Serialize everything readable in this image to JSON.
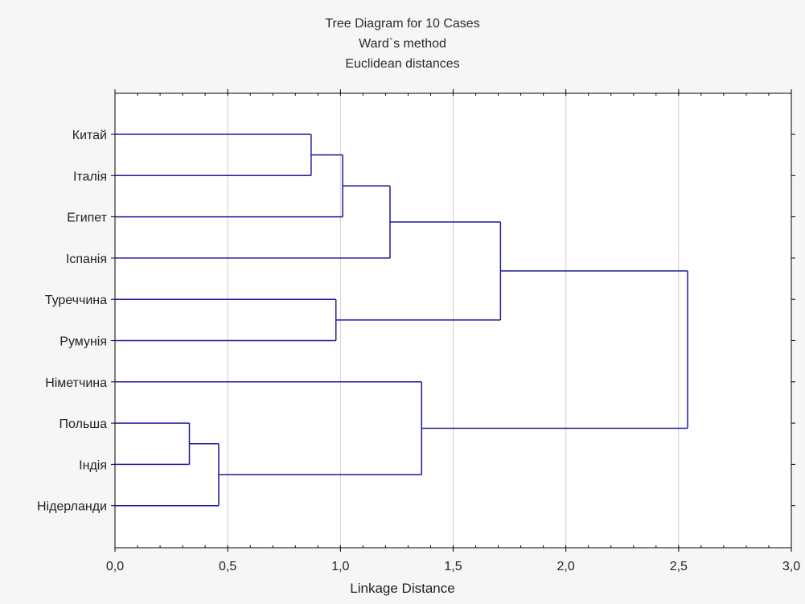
{
  "chart_data": {
    "type": "dendrogram",
    "title": [
      "Tree Diagram for 10 Cases",
      "Ward`s method",
      "Euclidean distances"
    ],
    "xlabel": "Linkage Distance",
    "ylabel": "",
    "xlim": [
      0,
      3.0
    ],
    "xticks": [
      "0,0",
      "0,5",
      "1,0",
      "1,5",
      "2,0",
      "2,5",
      "3,0"
    ],
    "grid": "vertical",
    "line_color": "#1a1aa0",
    "leaves": [
      "Китай",
      "Італія",
      "Египет",
      "Іспанія",
      "Туреччина",
      "Румунія",
      "Німетчина",
      "Польша",
      "Індія",
      "Нідерланди"
    ],
    "merges": [
      {
        "a": "Польша",
        "b": "Індія",
        "height": 0.33,
        "id": "m1"
      },
      {
        "a": "m1",
        "b": "Нідерланди",
        "height": 0.46,
        "id": "m2"
      },
      {
        "a": "Китай",
        "b": "Італія",
        "height": 0.87,
        "id": "m3"
      },
      {
        "a": "Туреччина",
        "b": "Румунія",
        "height": 0.98,
        "id": "m4"
      },
      {
        "a": "m3",
        "b": "Египет",
        "height": 1.01,
        "id": "m5"
      },
      {
        "a": "m5",
        "b": "Іспанія",
        "height": 1.22,
        "id": "m6"
      },
      {
        "a": "Німетчина",
        "b": "m2",
        "height": 1.36,
        "id": "m7"
      },
      {
        "a": "m6",
        "b": "m4",
        "height": 1.71,
        "id": "m8"
      },
      {
        "a": "m8",
        "b": "m7",
        "height": 2.54,
        "id": "m9"
      }
    ]
  }
}
